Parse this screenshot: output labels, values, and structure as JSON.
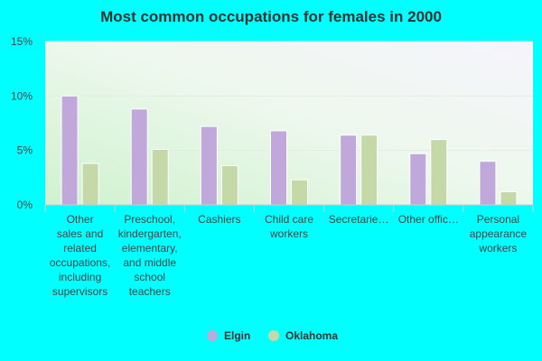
{
  "chart_data": {
    "type": "bar",
    "title": "Most common occupations for females in 2000",
    "xlabel": "",
    "ylabel": "",
    "ylim": [
      0,
      15
    ],
    "yticks": [
      "0%",
      "5%",
      "10%",
      "15%"
    ],
    "categories": [
      "Other sales and related occupations, including supervisors",
      "Preschool, kindergarten, elementary, and middle school teachers",
      "Cashiers",
      "Child care workers",
      "Secretarie…",
      "Other offic…",
      "Personal appearance workers"
    ],
    "category_lines": [
      [
        "Other",
        "sales and",
        "related",
        "occupations,",
        "including",
        "supervisors"
      ],
      [
        "Preschool,",
        "kindergarten,",
        "elementary,",
        "and middle",
        "school",
        "teachers"
      ],
      [
        "Cashiers"
      ],
      [
        "Child care",
        "workers"
      ],
      [
        "Secretarie…"
      ],
      [
        "Other offic…"
      ],
      [
        "Personal",
        "appearance",
        "workers"
      ]
    ],
    "series": [
      {
        "name": "Elgin",
        "color": "#C0A8DA",
        "values": [
          10.0,
          8.8,
          7.2,
          6.8,
          6.4,
          4.7,
          4.0
        ]
      },
      {
        "name": "Oklahoma",
        "color": "#C5D8A8",
        "values": [
          3.8,
          5.1,
          3.6,
          2.3,
          6.4,
          6.0,
          1.2
        ]
      }
    ],
    "grid": true,
    "legend_position": "bottom"
  }
}
